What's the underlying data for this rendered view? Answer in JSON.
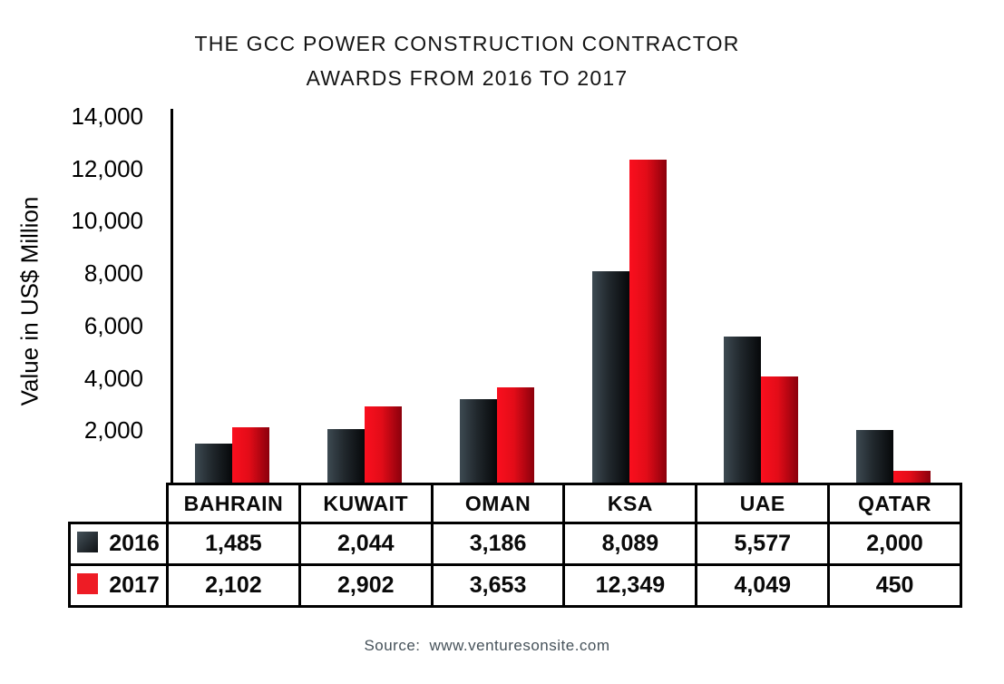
{
  "title": {
    "line1": "THE GCC POWER CONSTRUCTION CONTRACTOR",
    "line2": "AWARDS FROM 2016 TO 2017"
  },
  "source": {
    "label": "Source:",
    "url": "www.venturesonsite.com"
  },
  "chart_data": {
    "type": "bar",
    "title": "THE GCC POWER CONSTRUCTION CONTRACTOR AWARDS FROM 2016 TO 2017",
    "ylabel": "Value in US$ Million",
    "xlabel": "",
    "categories": [
      "BAHRAIN",
      "KUWAIT",
      "OMAN",
      "KSA",
      "UAE",
      "QATAR"
    ],
    "series": [
      {
        "name": "2016",
        "values": [
          1485,
          2044,
          3186,
          8089,
          5577,
          2000
        ],
        "bar_gradient": [
          "#3d4a52",
          "#21282d",
          "#06080a"
        ],
        "swatch_gradient": [
          "#45525a",
          "#0e1114"
        ]
      },
      {
        "name": "2017",
        "values": [
          2102,
          2902,
          3653,
          12349,
          4049,
          450
        ],
        "bar_gradient": [
          "#fa0f1e",
          "#e30c18",
          "#8b000c"
        ],
        "swatch_gradient": [
          "#ee1c25",
          "#ee1c25"
        ]
      }
    ],
    "ylim": [
      0,
      14000
    ],
    "ytick_step": 2000,
    "grid": false,
    "legend_position": "table-left",
    "value_format": "thousands-comma",
    "data_table_shown": true
  }
}
